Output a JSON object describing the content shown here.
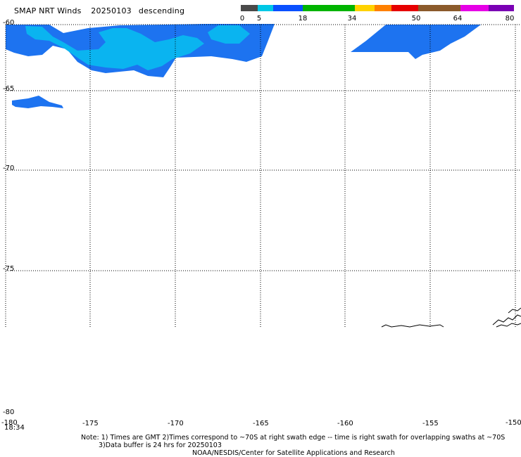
{
  "header": {
    "product": "SMAP NRT Winds",
    "date": "20250103",
    "pass": "descending"
  },
  "colorbar": {
    "labels": [
      "0",
      "5",
      "18",
      "34",
      "50",
      "64",
      "80"
    ],
    "colors": [
      "#4a4a4a",
      "#00c8e6",
      "#0a50ff",
      "#00b400",
      "#ffd200",
      "#ff8000",
      "#e60000",
      "#8b5a2b",
      "#e600e6",
      "#7a00b4"
    ]
  },
  "map": {
    "lat_labels": [
      "-60",
      "-65",
      "-70",
      "-75",
      "-80"
    ],
    "lon_labels": [
      "-180",
      "-175",
      "-170",
      "-165",
      "-160",
      "-155",
      "-150"
    ],
    "time_label": "18:34",
    "colors": {
      "swath_main": "#1d73f0",
      "swath_light": "#0ab4f0",
      "coast": "#000000",
      "grid": "#000000"
    }
  },
  "footer": {
    "note_line1": "Note:  1) Times are GMT  2)Times correspond to ~70S at right swath edge -- time is right swath for overlapping swaths at ~70S",
    "note_line2": "3)Data buffer is 24 hrs for 20250103",
    "credit": "NOAA/NESDIS/Center for Satellite Applications and Research"
  }
}
